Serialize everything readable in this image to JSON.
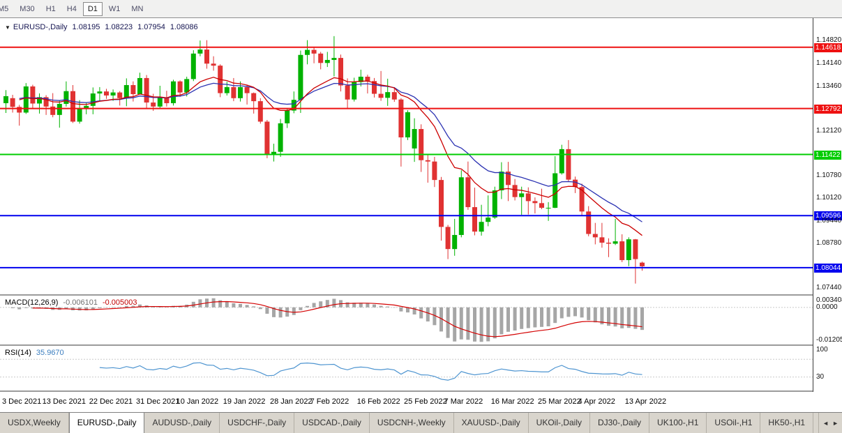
{
  "toolbar": {
    "timeframes": [
      {
        "label": "M5",
        "active": false
      },
      {
        "label": "M30",
        "active": false
      },
      {
        "label": "H1",
        "active": false
      },
      {
        "label": "H4",
        "active": false
      },
      {
        "label": "D1",
        "active": true
      },
      {
        "label": "W1",
        "active": false
      },
      {
        "label": "MN",
        "active": false
      }
    ]
  },
  "icons": {
    "dropdown": "▼",
    "scroll_left": "◄",
    "scroll_right": "►"
  },
  "chart": {
    "symbol_label": "EURUSD-,Daily",
    "quote": {
      "open": "1.08195",
      "high": "1.08223",
      "low": "1.07954",
      "close": "1.08086"
    }
  },
  "indicators": {
    "macd": {
      "label": "MACD(12,26,9)",
      "value_main": "-0.006101",
      "value_signal": "-0.005003"
    },
    "rsi": {
      "label": "RSI(14)",
      "value": "35.9670"
    }
  },
  "tabs": {
    "items": [
      {
        "label": "USDX,Weekly",
        "active": false
      },
      {
        "label": "EURUSD-,Daily",
        "active": true
      },
      {
        "label": "AUDUSD-,Daily",
        "active": false
      },
      {
        "label": "USDCHF-,Daily",
        "active": false
      },
      {
        "label": "USDCAD-,Daily",
        "active": false
      },
      {
        "label": "USDCNH-,Weekly",
        "active": false
      },
      {
        "label": "XAUUSD-,Daily",
        "active": false
      },
      {
        "label": "UKOil-,Daily",
        "active": false
      },
      {
        "label": "DJ30-,Daily",
        "active": false
      },
      {
        "label": "UK100-,H1",
        "active": false
      },
      {
        "label": "USOil-,H1",
        "active": false
      },
      {
        "label": "HK50-,H1",
        "active": false
      }
    ]
  },
  "chart_data": {
    "type": "candlestick",
    "symbol": "EURUSD-",
    "timeframe": "Daily",
    "ylim": [
      1.07252,
      1.15487
    ],
    "colors": {
      "bull": "#00B200",
      "bear": "#E03232"
    },
    "ma_fast": {
      "period": 13,
      "color": "#CC0000"
    },
    "ma_slow": {
      "period": 21,
      "color": "#2B32B2"
    },
    "hlines": [
      {
        "price": 1.14618,
        "color": "#EE1111"
      },
      {
        "price": 1.12792,
        "color": "#EE1111"
      },
      {
        "price": 1.11422,
        "color": "#00CC00"
      },
      {
        "price": 1.09596,
        "color": "#0000EE"
      },
      {
        "price": 1.08044,
        "color": "#0000EE"
      }
    ],
    "y_axis": [
      {
        "text": "1.14820",
        "price": 1.1482
      },
      {
        "text": "1.14618",
        "price": 1.14618,
        "tag": "#EE1111"
      },
      {
        "text": "1.14140",
        "price": 1.1414
      },
      {
        "text": "1.13460",
        "price": 1.1346
      },
      {
        "text": "1.12792",
        "price": 1.12792,
        "tag": "#EE1111"
      },
      {
        "text": "1.12120",
        "price": 1.1212
      },
      {
        "text": "1.11422",
        "price": 1.11422,
        "tag": "#00CC00"
      },
      {
        "text": "1.10780",
        "price": 1.1078
      },
      {
        "text": "1.10120",
        "price": 1.1012
      },
      {
        "text": "1.09596",
        "price": 1.09596,
        "tag": "#0000EE"
      },
      {
        "text": "1.09440",
        "price": 1.0944
      },
      {
        "text": "1.08780",
        "price": 1.0878
      },
      {
        "text": "1.08044",
        "price": 1.08044,
        "tag": "#0000EE"
      },
      {
        "text": "1.07440",
        "price": 1.0744
      }
    ],
    "macd": {
      "params": [
        12,
        26,
        9
      ],
      "hist_color": "#A6A6A6",
      "signal_color": "#D40000",
      "axis": {
        "top": "0.003408",
        "zero": "0.0000",
        "bottom": "-0.012058"
      }
    },
    "rsi": {
      "period": 14,
      "color": "#4D94D0",
      "levels": [
        70,
        30
      ],
      "axis": [
        {
          "text": "100",
          "value": 100
        },
        {
          "text": "30",
          "value": 30
        }
      ]
    },
    "x_labels": [
      {
        "i": 0,
        "text": "3 Dec 2021"
      },
      {
        "i": 6,
        "text": "13 Dec 2021"
      },
      {
        "i": 13,
        "text": "22 Dec 2021"
      },
      {
        "i": 20,
        "text": "31 Dec 2021"
      },
      {
        "i": 26,
        "text": "10 Jan 2022"
      },
      {
        "i": 33,
        "text": "19 Jan 2022"
      },
      {
        "i": 40,
        "text": "28 Jan 2022"
      },
      {
        "i": 46,
        "text": "7 Feb 2022"
      },
      {
        "i": 53,
        "text": "16 Feb 2022"
      },
      {
        "i": 60,
        "text": "25 Feb 2022"
      },
      {
        "i": 66,
        "text": "7 Mar 2022"
      },
      {
        "i": 73,
        "text": "16 Mar 2022"
      },
      {
        "i": 80,
        "text": "25 Mar 2022"
      },
      {
        "i": 86,
        "text": "4 Apr 2022"
      },
      {
        "i": 93,
        "text": "13 Apr 2022"
      }
    ],
    "candles": [
      [
        1.1295,
        1.1334,
        1.1266,
        1.1316
      ],
      [
        1.131,
        1.132,
        1.1267,
        1.1284
      ],
      [
        1.1284,
        1.129,
        1.1228,
        1.1267
      ],
      [
        1.1267,
        1.1355,
        1.1263,
        1.1345
      ],
      [
        1.1345,
        1.135,
        1.128,
        1.1294
      ],
      [
        1.1294,
        1.1324,
        1.1264,
        1.1313
      ],
      [
        1.1313,
        1.1319,
        1.126,
        1.1285
      ],
      [
        1.1285,
        1.1325,
        1.1253,
        1.126
      ],
      [
        1.126,
        1.1304,
        1.1222,
        1.1293
      ],
      [
        1.1293,
        1.136,
        1.1285,
        1.1331
      ],
      [
        1.1331,
        1.1349,
        1.1236,
        1.124
      ],
      [
        1.124,
        1.1304,
        1.1234,
        1.1279
      ],
      [
        1.1279,
        1.1298,
        1.1262,
        1.1287
      ],
      [
        1.1287,
        1.1342,
        1.1262,
        1.1324
      ],
      [
        1.1324,
        1.1343,
        1.1303,
        1.133
      ],
      [
        1.133,
        1.1338,
        1.1308,
        1.1318
      ],
      [
        1.1318,
        1.1336,
        1.1302,
        1.1327
      ],
      [
        1.1327,
        1.1331,
        1.1288,
        1.131
      ],
      [
        1.131,
        1.1369,
        1.1286,
        1.1349
      ],
      [
        1.1349,
        1.136,
        1.13,
        1.1322
      ],
      [
        1.1322,
        1.1386,
        1.1321,
        1.137
      ],
      [
        1.137,
        1.1379,
        1.1279,
        1.1297
      ],
      [
        1.1297,
        1.1323,
        1.1272,
        1.1285
      ],
      [
        1.1285,
        1.1347,
        1.128,
        1.1312
      ],
      [
        1.1312,
        1.1332,
        1.1285,
        1.1295
      ],
      [
        1.1295,
        1.1365,
        1.1288,
        1.136
      ],
      [
        1.136,
        1.1363,
        1.1314,
        1.1327
      ],
      [
        1.1327,
        1.1374,
        1.1315,
        1.1367
      ],
      [
        1.1367,
        1.1453,
        1.1361,
        1.1443
      ],
      [
        1.1443,
        1.1482,
        1.1435,
        1.1455
      ],
      [
        1.1455,
        1.1483,
        1.1398,
        1.1413
      ],
      [
        1.1413,
        1.1435,
        1.1392,
        1.1407
      ],
      [
        1.1407,
        1.1411,
        1.1313,
        1.1325
      ],
      [
        1.1325,
        1.1359,
        1.1318,
        1.1343
      ],
      [
        1.1343,
        1.137,
        1.1301,
        1.131
      ],
      [
        1.131,
        1.136,
        1.13,
        1.1343
      ],
      [
        1.1343,
        1.1349,
        1.1291,
        1.1325
      ],
      [
        1.1325,
        1.1327,
        1.1264,
        1.1301
      ],
      [
        1.1301,
        1.131,
        1.1234,
        1.124
      ],
      [
        1.124,
        1.1245,
        1.1131,
        1.1144
      ],
      [
        1.1144,
        1.1174,
        1.1121,
        1.115
      ],
      [
        1.115,
        1.1248,
        1.1135,
        1.1235
      ],
      [
        1.1235,
        1.1279,
        1.1221,
        1.1273
      ],
      [
        1.1273,
        1.133,
        1.1265,
        1.1305
      ],
      [
        1.1305,
        1.1452,
        1.1266,
        1.1439
      ],
      [
        1.1439,
        1.1483,
        1.1411,
        1.1454
      ],
      [
        1.1454,
        1.1462,
        1.1414,
        1.1443
      ],
      [
        1.1443,
        1.1448,
        1.1396,
        1.1415
      ],
      [
        1.1415,
        1.1448,
        1.1403,
        1.1424
      ],
      [
        1.1424,
        1.1495,
        1.1375,
        1.143
      ],
      [
        1.143,
        1.144,
        1.133,
        1.1348
      ],
      [
        1.1348,
        1.1369,
        1.128,
        1.1306
      ],
      [
        1.1306,
        1.1371,
        1.13,
        1.1358
      ],
      [
        1.1358,
        1.1395,
        1.1345,
        1.1374
      ],
      [
        1.1374,
        1.138,
        1.1324,
        1.1361
      ],
      [
        1.1361,
        1.137,
        1.1312,
        1.1323
      ],
      [
        1.1323,
        1.1391,
        1.1302,
        1.1311
      ],
      [
        1.1311,
        1.1368,
        1.1287,
        1.1328
      ],
      [
        1.1328,
        1.1343,
        1.1299,
        1.1306
      ],
      [
        1.1306,
        1.131,
        1.1106,
        1.1193
      ],
      [
        1.1193,
        1.1274,
        1.1185,
        1.1268
      ],
      [
        1.116,
        1.125,
        1.112,
        1.1218
      ],
      [
        1.1218,
        1.1232,
        1.109,
        1.1125
      ],
      [
        1.1125,
        1.114,
        1.1058,
        1.1121
      ],
      [
        1.1121,
        1.1135,
        1.1045,
        1.1066
      ],
      [
        1.1066,
        1.1075,
        1.0885,
        1.0926
      ],
      [
        1.0926,
        1.0932,
        1.083,
        1.086
      ],
      [
        1.086,
        1.095,
        1.084,
        1.0902
      ],
      [
        1.0902,
        1.1095,
        1.0895,
        1.1074
      ],
      [
        1.1074,
        1.1121,
        1.0977,
        1.0985
      ],
      [
        1.0985,
        1.1043,
        1.0901,
        1.0912
      ],
      [
        1.0912,
        1.0992,
        1.09,
        1.0941
      ],
      [
        1.0941,
        1.102,
        1.0928,
        1.0954
      ],
      [
        1.0954,
        1.1046,
        1.095,
        1.1035
      ],
      [
        1.1035,
        1.1119,
        1.1009,
        1.1091
      ],
      [
        1.1091,
        1.112,
        1.1003,
        1.1051
      ],
      [
        1.1051,
        1.1069,
        1.1005,
        1.1015
      ],
      [
        1.1015,
        1.1046,
        1.0962,
        1.1026
      ],
      [
        1.1026,
        1.1044,
        1.0963,
        1.1003
      ],
      [
        1.1003,
        1.1014,
        1.0966,
        1.0997
      ],
      [
        1.0997,
        1.104,
        1.0979,
        1.0983
      ],
      [
        1.0983,
        1.1,
        1.0944,
        1.0983
      ],
      [
        1.0983,
        1.1137,
        1.0982,
        1.1086
      ],
      [
        1.1086,
        1.1171,
        1.1082,
        1.1158
      ],
      [
        1.1158,
        1.1185,
        1.106,
        1.1067
      ],
      [
        1.1067,
        1.1076,
        1.1027,
        1.1045
      ],
      [
        1.1045,
        1.1055,
        1.096,
        1.0972
      ],
      [
        1.0972,
        1.0988,
        1.0898,
        1.0905
      ],
      [
        1.0905,
        1.0938,
        1.0874,
        1.0895
      ],
      [
        1.0895,
        1.0938,
        1.0864,
        1.0879
      ],
      [
        1.0879,
        1.0892,
        1.0836,
        1.0876
      ],
      [
        1.0876,
        1.095,
        1.0872,
        1.0883
      ],
      [
        1.0883,
        1.0904,
        1.0821,
        1.0827
      ],
      [
        1.0827,
        1.0895,
        1.0809,
        1.0889
      ],
      [
        1.0889,
        1.089,
        1.0757,
        1.083
      ],
      [
        1.08195,
        1.08223,
        1.07954,
        1.08086
      ]
    ]
  }
}
